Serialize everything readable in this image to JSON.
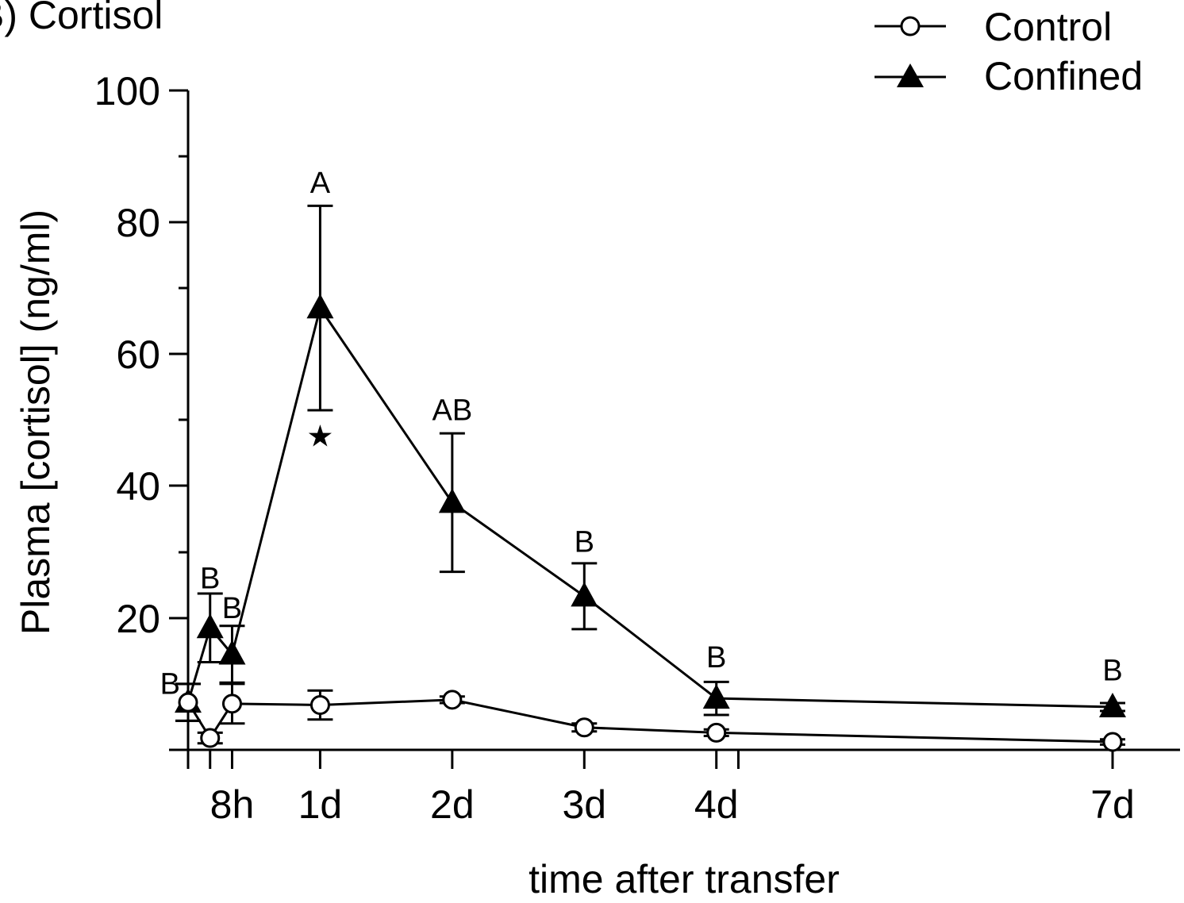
{
  "chart_data": {
    "type": "line",
    "title": "B) Cortisol",
    "xlabel": "time after transfer",
    "ylabel": "Plasma [cortisol] (ng/ml)",
    "ylim": [
      0,
      100
    ],
    "yticks": [
      "100",
      "80",
      "60",
      "40",
      "20"
    ],
    "x_unit": "hours",
    "xlim": [
      0,
      168
    ],
    "xticks": [
      {
        "value": 8,
        "label": "8h"
      },
      {
        "value": 24,
        "label": "1d"
      },
      {
        "value": 48,
        "label": "2d"
      },
      {
        "value": 72,
        "label": "3d"
      },
      {
        "value": 96,
        "label": "4d"
      },
      {
        "value": 168,
        "label": "7d"
      }
    ],
    "minor_xticks": [
      0,
      4,
      100
    ],
    "grid": false,
    "legend_position": "top-right",
    "series": [
      {
        "name": "Control",
        "marker": "open-circle",
        "color": "#000000",
        "points": [
          {
            "x": 0,
            "y": 7.2,
            "err": 2.8
          },
          {
            "x": 4,
            "y": 1.8,
            "err": 0.8
          },
          {
            "x": 8,
            "y": 7.0,
            "err": 3.0
          },
          {
            "x": 24,
            "y": 6.8,
            "err": 2.2
          },
          {
            "x": 48,
            "y": 7.6,
            "err": 0.5
          },
          {
            "x": 72,
            "y": 3.4,
            "err": 0.6
          },
          {
            "x": 96,
            "y": 2.6,
            "err": 0.5
          },
          {
            "x": 168,
            "y": 1.2,
            "err": 0.4
          }
        ]
      },
      {
        "name": "Confined",
        "marker": "filled-triangle",
        "color": "#000000",
        "points": [
          {
            "x": 0,
            "y": 7.2,
            "err": 2.8
          },
          {
            "x": 4,
            "y": 18.5,
            "err": 5.2
          },
          {
            "x": 8,
            "y": 14.5,
            "err": 4.3
          },
          {
            "x": 24,
            "y": 67.0,
            "err": 15.5
          },
          {
            "x": 48,
            "y": 37.5,
            "err": 10.5
          },
          {
            "x": 72,
            "y": 23.3,
            "err": 5.0
          },
          {
            "x": 96,
            "y": 7.8,
            "err": 2.5
          },
          {
            "x": 168,
            "y": 6.5,
            "err": 0.6
          }
        ]
      }
    ],
    "annotations": [
      {
        "text": "B",
        "x": 0,
        "y": 8.5,
        "anchor": "end"
      },
      {
        "text": "B",
        "x": 4,
        "y": 24.5,
        "anchor": "middle"
      },
      {
        "text": "B",
        "x": 8,
        "y": 20.0,
        "anchor": "middle"
      },
      {
        "text": "A",
        "x": 24,
        "y": 84.5,
        "anchor": "middle"
      },
      {
        "text": "AB",
        "x": 48,
        "y": 50.0,
        "anchor": "middle"
      },
      {
        "text": "B",
        "x": 72,
        "y": 30.0,
        "anchor": "middle"
      },
      {
        "text": "B",
        "x": 96,
        "y": 12.5,
        "anchor": "middle"
      },
      {
        "text": "B",
        "x": 168,
        "y": 10.5,
        "anchor": "middle"
      },
      {
        "text": "★",
        "x": 24,
        "y": 46.0,
        "anchor": "middle"
      }
    ]
  }
}
